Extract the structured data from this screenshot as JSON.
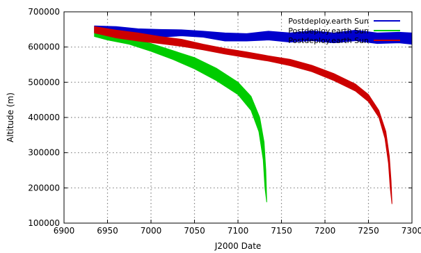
{
  "chart_data": {
    "type": "area",
    "xlabel": "J2000 Date",
    "ylabel": "Altitude (m)",
    "xlim": [
      6900,
      7300
    ],
    "ylim": [
      100000,
      700000
    ],
    "x_ticks": [
      "6900",
      "6950",
      "7000",
      "7050",
      "7100",
      "7150",
      "7200",
      "7250",
      "7300"
    ],
    "y_ticks": [
      "100000",
      "200000",
      "300000",
      "400000",
      "500000",
      "600000",
      "700000"
    ],
    "grid": true,
    "legend_position": "top-right",
    "series": [
      {
        "name": "Postdeploy.earth Sun",
        "color": "#0000cc",
        "upper": [
          [
            6935,
            660000
          ],
          [
            6960,
            658000
          ],
          [
            6985,
            652000
          ],
          [
            7010,
            650000
          ],
          [
            7035,
            649000
          ],
          [
            7060,
            645000
          ],
          [
            7085,
            640000
          ],
          [
            7110,
            638000
          ],
          [
            7135,
            645000
          ],
          [
            7160,
            640000
          ],
          [
            7185,
            646000
          ],
          [
            7210,
            640000
          ],
          [
            7235,
            648000
          ],
          [
            7260,
            640000
          ],
          [
            7285,
            642000
          ],
          [
            7300,
            640000
          ]
        ],
        "lower": [
          [
            6935,
            640000
          ],
          [
            6960,
            634000
          ],
          [
            6985,
            627000
          ],
          [
            7010,
            628000
          ],
          [
            7035,
            632000
          ],
          [
            7060,
            628000
          ],
          [
            7085,
            617000
          ],
          [
            7110,
            617000
          ],
          [
            7135,
            620000
          ],
          [
            7160,
            614000
          ],
          [
            7185,
            618000
          ],
          [
            7210,
            612000
          ],
          [
            7235,
            618000
          ],
          [
            7260,
            610000
          ],
          [
            7285,
            612000
          ],
          [
            7300,
            608000
          ]
        ]
      },
      {
        "name": "Postdeploy.earth Sun",
        "color": "#00cc00",
        "upper": [
          [
            6935,
            648000
          ],
          [
            6950,
            635000
          ],
          [
            6975,
            625000
          ],
          [
            7000,
            610000
          ],
          [
            7025,
            590000
          ],
          [
            7050,
            570000
          ],
          [
            7075,
            540000
          ],
          [
            7100,
            500000
          ],
          [
            7115,
            460000
          ],
          [
            7125,
            400000
          ],
          [
            7130,
            330000
          ],
          [
            7132,
            250000
          ],
          [
            7133,
            165000
          ]
        ],
        "lower": [
          [
            6935,
            630000
          ],
          [
            6950,
            620000
          ],
          [
            6975,
            608000
          ],
          [
            7000,
            588000
          ],
          [
            7025,
            565000
          ],
          [
            7050,
            538000
          ],
          [
            7075,
            505000
          ],
          [
            7100,
            465000
          ],
          [
            7115,
            420000
          ],
          [
            7124,
            360000
          ],
          [
            7129,
            280000
          ],
          [
            7131,
            200000
          ],
          [
            7133,
            160000
          ]
        ]
      },
      {
        "name": "Postdeploy.earth Sun",
        "color": "#cc0000",
        "upper": [
          [
            6935,
            658000
          ],
          [
            6960,
            648000
          ],
          [
            6985,
            640000
          ],
          [
            7010,
            630000
          ],
          [
            7035,
            622000
          ],
          [
            7060,
            608000
          ],
          [
            7085,
            596000
          ],
          [
            7110,
            586000
          ],
          [
            7135,
            575000
          ],
          [
            7160,
            565000
          ],
          [
            7185,
            548000
          ],
          [
            7210,
            525000
          ],
          [
            7235,
            495000
          ],
          [
            7250,
            465000
          ],
          [
            7262,
            420000
          ],
          [
            7270,
            360000
          ],
          [
            7274,
            290000
          ],
          [
            7276,
            220000
          ],
          [
            7277,
            160000
          ]
        ],
        "lower": [
          [
            6935,
            640000
          ],
          [
            6960,
            626000
          ],
          [
            6985,
            617000
          ],
          [
            7010,
            610000
          ],
          [
            7035,
            602000
          ],
          [
            7060,
            592000
          ],
          [
            7085,
            580000
          ],
          [
            7110,
            570000
          ],
          [
            7135,
            560000
          ],
          [
            7160,
            547000
          ],
          [
            7185,
            530000
          ],
          [
            7210,
            505000
          ],
          [
            7235,
            475000
          ],
          [
            7250,
            445000
          ],
          [
            7262,
            400000
          ],
          [
            7269,
            340000
          ],
          [
            7273,
            270000
          ],
          [
            7275,
            200000
          ],
          [
            7277,
            155000
          ]
        ]
      }
    ]
  }
}
